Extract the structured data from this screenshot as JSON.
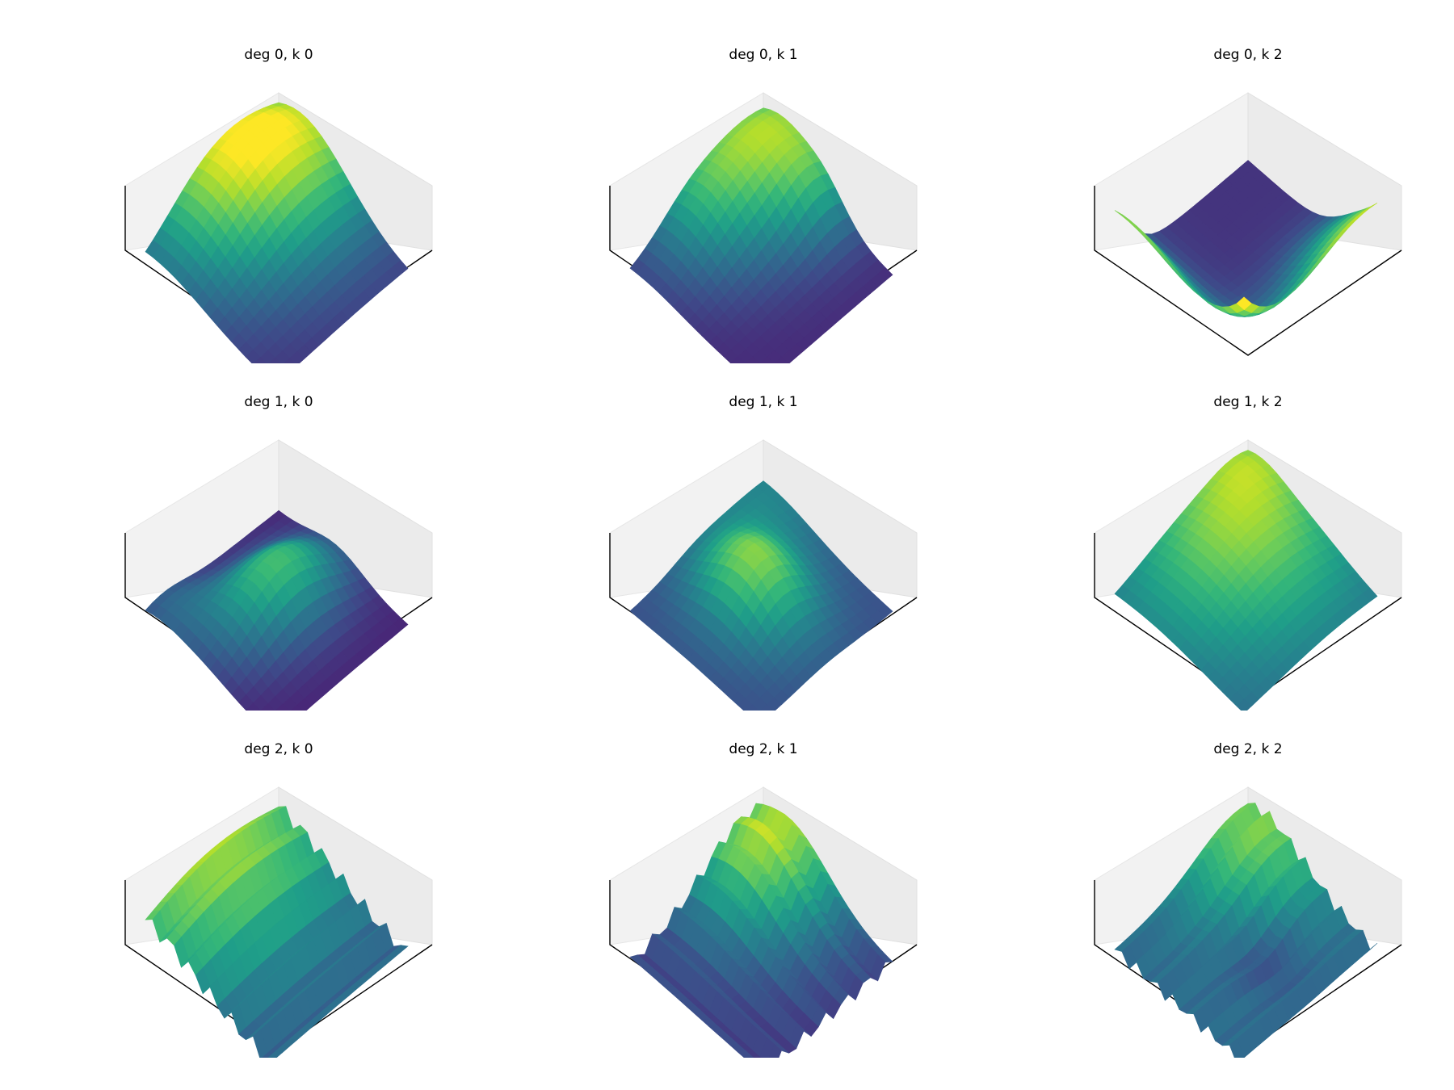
{
  "chart_data": [
    {
      "type": "surface",
      "title": "deg 0, k 0",
      "colormap": "viridis",
      "grid": true,
      "shape": "smooth-ridge"
    },
    {
      "type": "surface",
      "title": "deg 0, k 1",
      "colormap": "viridis",
      "grid": true,
      "shape": "smooth-ridge-bumpy"
    },
    {
      "type": "surface",
      "title": "deg 0, k 2",
      "colormap": "viridis",
      "grid": true,
      "shape": "bowl-with-raised-edges"
    },
    {
      "type": "surface",
      "title": "deg 1, k 0",
      "colormap": "viridis",
      "grid": true,
      "shape": "central-bump-low"
    },
    {
      "type": "surface",
      "title": "deg 1, k 1",
      "colormap": "viridis",
      "grid": true,
      "shape": "central-bump-plateau"
    },
    {
      "type": "surface",
      "title": "deg 1, k 2",
      "colormap": "viridis",
      "grid": true,
      "shape": "high-plateau"
    },
    {
      "type": "surface",
      "title": "deg 2, k 0",
      "colormap": "viridis",
      "grid": true,
      "shape": "sloped-plateau-spiky-edges"
    },
    {
      "type": "surface",
      "title": "deg 2, k 1",
      "colormap": "viridis",
      "grid": true,
      "shape": "corner-peak-spiky-edges"
    },
    {
      "type": "surface",
      "title": "deg 2, k 2",
      "colormap": "viridis",
      "grid": true,
      "shape": "ridge-with-dip-spiky-edges"
    }
  ]
}
